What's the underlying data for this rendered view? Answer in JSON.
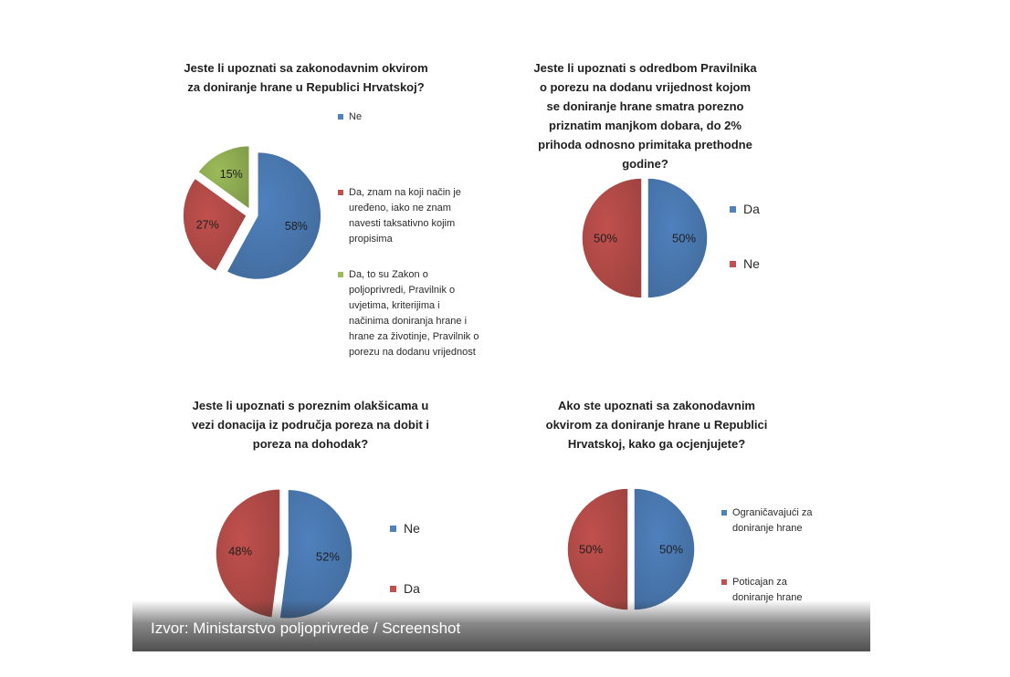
{
  "source_caption": "Izvor: Ministarstvo poljoprivrede / Screenshot",
  "chart_data": [
    {
      "type": "pie",
      "title_lines": [
        "Jeste li upoznati sa zakonodavnim okvirom",
        "za doniranje hrane u Republici Hrvatskoj?"
      ],
      "series": [
        {
          "name": "Ne",
          "value": 58,
          "label": "58%",
          "color": "#4f81bd",
          "legend_lines": [
            "Ne"
          ]
        },
        {
          "name": "Da, znam na koji način je uređeno, iako ne znam navesti taksativno kojim propisima",
          "value": 27,
          "label": "27%",
          "color": "#c0504d",
          "legend_lines": [
            "Da, znam na koji način je",
            "uređeno, iako ne znam",
            "navesti taksativno kojim",
            "propisima"
          ]
        },
        {
          "name": "Da, to su Zakon o poljoprivredi, Pravilnik o uvjetima, kriterijima i načinima doniranja hrane i hrane za životinje, Pravilnik o porezu na dodanu vrijednost",
          "value": 15,
          "label": "15%",
          "color": "#9bbb59",
          "legend_lines": [
            "Da, to su Zakon o",
            "poljoprivredi, Pravilnik o",
            "uvjetima, kriterijima i",
            "načinima doniranja hrane i",
            "hrane za životinje, Pravilnik o",
            "porezu na dodanu vrijednost"
          ]
        }
      ],
      "legend_position": "right"
    },
    {
      "type": "pie",
      "title_lines": [
        "Jeste li upoznati s odredbom Pravilnika",
        "o porezu na dodanu vrijednost kojom",
        "se doniranje hrane smatra porezno",
        "priznatim manjkom dobara, do 2%",
        "prihoda odnosno primitaka prethodne",
        "godine?"
      ],
      "series": [
        {
          "name": "Da",
          "value": 50,
          "label": "50%",
          "color": "#4f81bd",
          "legend_lines": [
            "Da"
          ]
        },
        {
          "name": "Ne",
          "value": 50,
          "label": "50%",
          "color": "#c0504d",
          "legend_lines": [
            "Ne"
          ]
        }
      ],
      "legend_position": "right"
    },
    {
      "type": "pie",
      "title_lines": [
        "Jeste li upoznati s poreznim olakšicama u",
        "vezi  donacija iz područja poreza na dobit i",
        "poreza na dohodak?"
      ],
      "series": [
        {
          "name": "Ne",
          "value": 52,
          "label": "52%",
          "color": "#4f81bd",
          "legend_lines": [
            "Ne"
          ]
        },
        {
          "name": "Da",
          "value": 48,
          "label": "48%",
          "color": "#c0504d",
          "legend_lines": [
            "Da"
          ]
        }
      ],
      "legend_position": "right"
    },
    {
      "type": "pie",
      "title_lines": [
        "Ako ste upoznati sa zakonodavnim",
        "okvirom za doniranje hrane u Republici",
        "Hrvatskoj, kako ga ocjenjujete?"
      ],
      "series": [
        {
          "name": "Ograničavajući za doniranje hrane",
          "value": 50,
          "label": "50%",
          "color": "#4f81bd",
          "legend_lines": [
            "Ograničavajući za",
            "doniranje hrane"
          ]
        },
        {
          "name": "Poticajan za doniranje hrane",
          "value": 50,
          "label": "50%",
          "color": "#c0504d",
          "legend_lines": [
            "Poticajan za",
            "doniranje hrane"
          ]
        }
      ],
      "legend_position": "right"
    }
  ]
}
